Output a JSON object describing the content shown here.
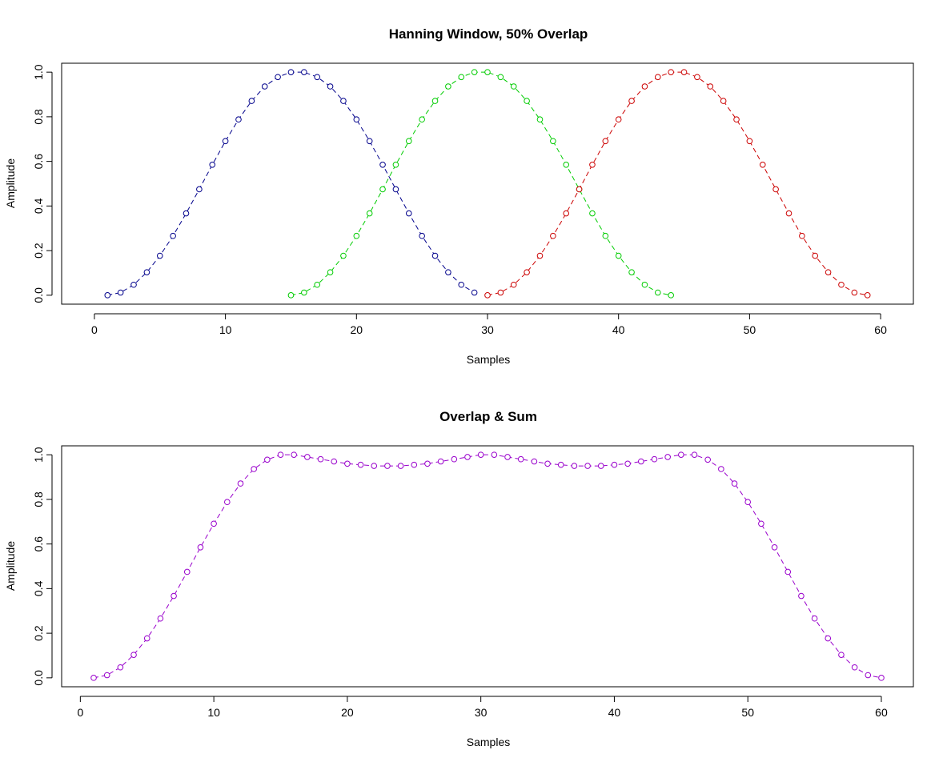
{
  "chart_data": [
    {
      "type": "scatter",
      "title": "Hanning Window, 50% Overlap",
      "xlabel": "Samples",
      "ylabel": "Amplitude",
      "xlim": [
        -2.5,
        62.5
      ],
      "ylim": [
        -0.04,
        1.04
      ],
      "xticks": [
        0,
        10,
        20,
        30,
        40,
        50,
        60
      ],
      "yticks": [
        0.0,
        0.2,
        0.4,
        0.6,
        0.8,
        1.0
      ],
      "grid": false,
      "line_style": "dashed",
      "series": [
        {
          "color": "#00008B",
          "x": [
            1,
            2,
            3,
            4,
            5,
            6,
            7,
            8,
            9,
            10,
            11,
            12,
            13,
            14,
            15,
            16,
            17,
            18,
            19,
            20,
            21,
            22,
            23,
            24,
            25,
            26,
            27,
            28,
            29
          ],
          "y": [
            0.0,
            0.012,
            0.047,
            0.103,
            0.177,
            0.266,
            0.367,
            0.475,
            0.585,
            0.691,
            0.788,
            0.871,
            0.936,
            0.978,
            1.0,
            1.0,
            0.978,
            0.936,
            0.871,
            0.788,
            0.691,
            0.585,
            0.475,
            0.367,
            0.266,
            0.177,
            0.103,
            0.047,
            0.012
          ]
        },
        {
          "color": "#00CC00",
          "x": [
            15,
            16,
            17,
            18,
            19,
            20,
            21,
            22,
            23,
            24,
            25,
            26,
            27,
            28,
            29,
            30,
            31,
            32,
            33,
            34,
            35,
            36,
            37,
            38,
            39,
            40,
            41,
            42,
            43,
            44
          ],
          "y": [
            0.0,
            0.012,
            0.047,
            0.103,
            0.177,
            0.266,
            0.367,
            0.475,
            0.585,
            0.691,
            0.788,
            0.871,
            0.936,
            0.978,
            1.0,
            1.0,
            0.978,
            0.936,
            0.871,
            0.788,
            0.691,
            0.585,
            0.475,
            0.367,
            0.266,
            0.177,
            0.103,
            0.047,
            0.012,
            0.0
          ]
        },
        {
          "color": "#CC0000",
          "x": [
            30,
            31,
            32,
            33,
            34,
            35,
            36,
            37,
            38,
            39,
            40,
            41,
            42,
            43,
            44,
            45,
            46,
            47,
            48,
            49,
            50,
            51,
            52,
            53,
            54,
            55,
            56,
            57,
            58,
            59
          ],
          "y": [
            0.0,
            0.012,
            0.047,
            0.103,
            0.177,
            0.266,
            0.367,
            0.475,
            0.585,
            0.691,
            0.788,
            0.871,
            0.936,
            0.978,
            1.0,
            1.0,
            0.978,
            0.936,
            0.871,
            0.788,
            0.691,
            0.585,
            0.475,
            0.367,
            0.266,
            0.177,
            0.103,
            0.047,
            0.012,
            0.0
          ]
        }
      ]
    },
    {
      "type": "scatter",
      "title": "Overlap & Sum",
      "xlabel": "Samples",
      "ylabel": "Amplitude",
      "xlim": [
        -1.4,
        62.4
      ],
      "ylim": [
        -0.04,
        1.04
      ],
      "xticks": [
        0,
        10,
        20,
        30,
        40,
        50,
        60
      ],
      "yticks": [
        0.0,
        0.2,
        0.4,
        0.6,
        0.8,
        1.0
      ],
      "grid": false,
      "line_style": "dashed",
      "series": [
        {
          "color": "#9900CC",
          "x": [
            1,
            2,
            3,
            4,
            5,
            6,
            7,
            8,
            9,
            10,
            11,
            12,
            13,
            14,
            15,
            16,
            17,
            18,
            19,
            20,
            21,
            22,
            23,
            24,
            25,
            26,
            27,
            28,
            29,
            30,
            31,
            32,
            33,
            34,
            35,
            36,
            37,
            38,
            39,
            40,
            41,
            42,
            43,
            44,
            45,
            46,
            47,
            48,
            49,
            50,
            51,
            52,
            53,
            54,
            55,
            56,
            57,
            58,
            59,
            60
          ],
          "y": [
            0.0,
            0.012,
            0.047,
            0.103,
            0.177,
            0.266,
            0.367,
            0.475,
            0.585,
            0.691,
            0.788,
            0.871,
            0.936,
            0.978,
            1.0,
            1.0,
            0.99,
            0.98,
            0.97,
            0.96,
            0.955,
            0.95,
            0.95,
            0.95,
            0.955,
            0.96,
            0.97,
            0.98,
            0.99,
            1.0,
            1.0,
            0.99,
            0.98,
            0.97,
            0.96,
            0.955,
            0.95,
            0.95,
            0.95,
            0.955,
            0.96,
            0.97,
            0.98,
            0.99,
            1.0,
            1.0,
            0.978,
            0.936,
            0.871,
            0.788,
            0.691,
            0.585,
            0.475,
            0.367,
            0.266,
            0.177,
            0.103,
            0.047,
            0.012,
            0.0
          ]
        }
      ]
    }
  ]
}
